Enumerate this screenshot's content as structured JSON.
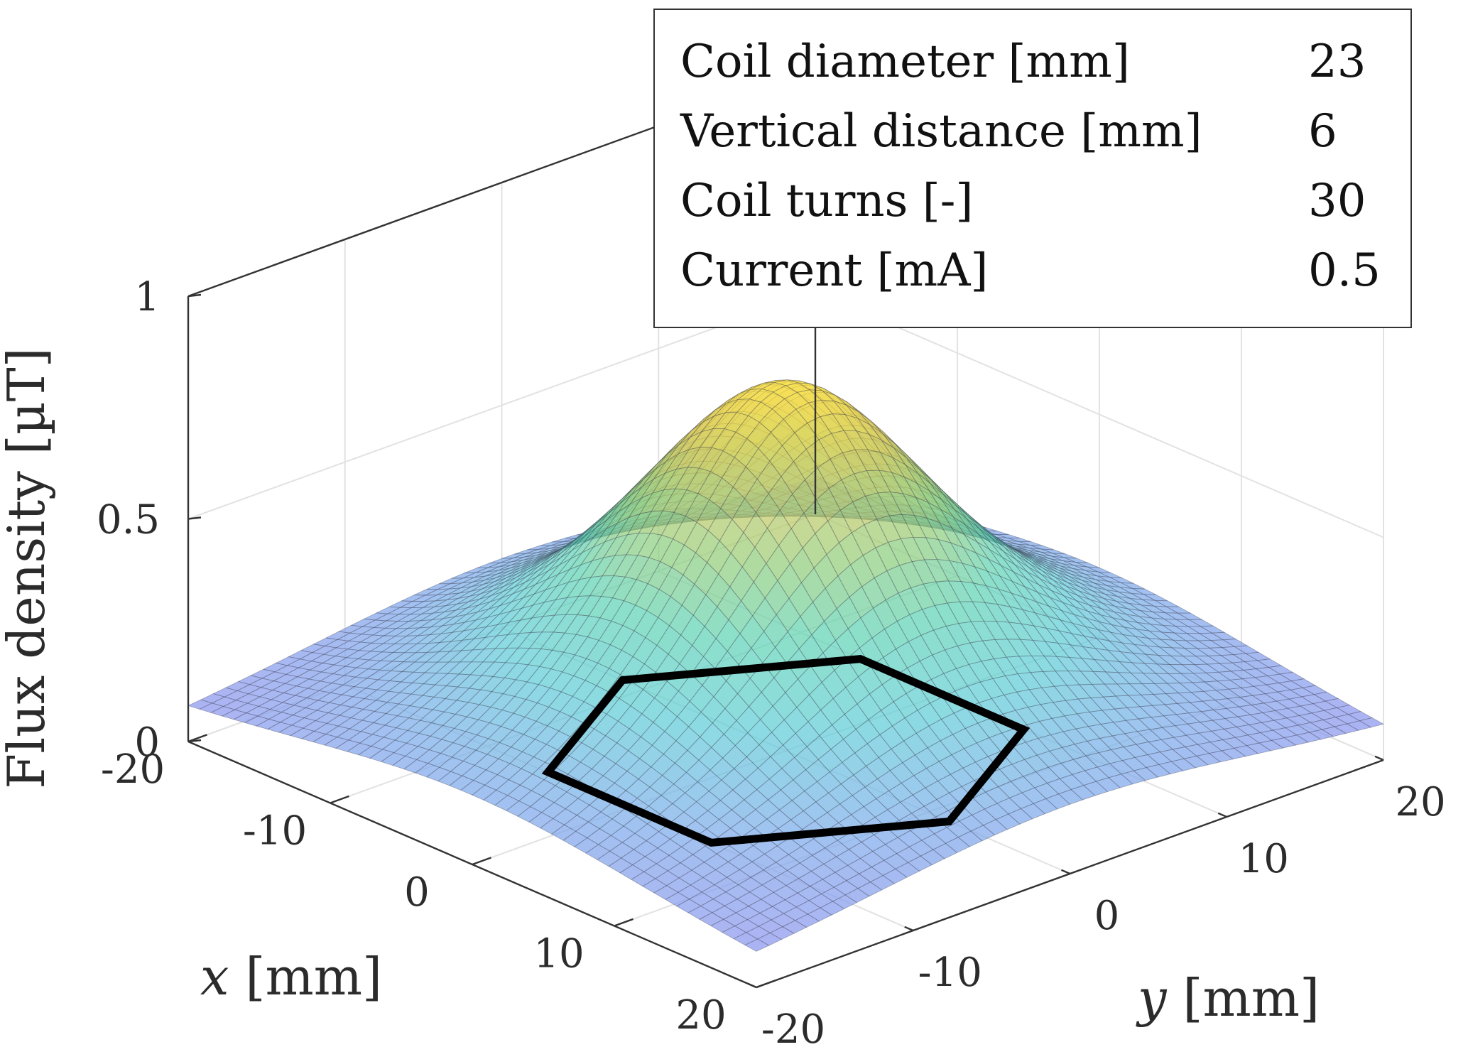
{
  "chart_data": {
    "type": "surface3d",
    "zlabel": "Flux density [µT]",
    "xlabel": "x [mm]",
    "ylabel": "y [mm]",
    "x_ticks": [
      "-20",
      "-10",
      "0",
      "10",
      "20"
    ],
    "y_ticks": [
      "-20",
      "-10",
      "0",
      "10",
      "20"
    ],
    "z_ticks": [
      "0",
      "0.5",
      "1"
    ],
    "xlim": [
      -20,
      20
    ],
    "ylim": [
      -20,
      20
    ],
    "zlim": [
      0,
      1
    ],
    "surface": {
      "model": "flux density above a hexagonal coil",
      "peak_x": 0,
      "peak_y": 0,
      "peak_value": 0.82,
      "corner_value": 0.02,
      "grid_step_mm": 0.8,
      "colormap": "parula"
    },
    "coil_outline": {
      "shape": "hexagon",
      "z": 0,
      "vertices_xy": [
        [
          -11.5,
          0
        ],
        [
          -5.75,
          9.96
        ],
        [
          5.75,
          9.96
        ],
        [
          11.5,
          0
        ],
        [
          5.75,
          -9.96
        ],
        [
          -5.75,
          -9.96
        ]
      ]
    },
    "grid": true
  },
  "info_table": {
    "rows": [
      {
        "label": "Coil diameter [mm]",
        "value": "23"
      },
      {
        "label": "Vertical distance [mm]",
        "value": "6"
      },
      {
        "label": "Coil turns [-]",
        "value": "30"
      },
      {
        "label": "Current [mA]",
        "value": "0.5"
      }
    ]
  }
}
